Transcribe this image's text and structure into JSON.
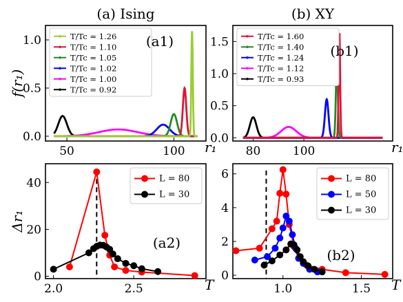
{
  "figure": {
    "panels": [
      {
        "id": "a1",
        "title": "(a) Ising",
        "ylabel": "f(r₁)",
        "xlabel": "r₁",
        "annotation": "(a1)",
        "legend_items": [
          {
            "label": "T/Tₑ = 1.26",
            "tc_label": "T/Tc = 1.26",
            "color": "#9acd32"
          },
          {
            "label": "T/Tc = 1.10",
            "tc_label": "T/Tc = 1.10",
            "color": "#dc143c"
          },
          {
            "label": "T/Tc = 1.05",
            "tc_label": "T/Tc = 1.05",
            "color": "#228b22"
          },
          {
            "label": "T/Tc = 1.02",
            "tc_label": "T/Tc = 1.02",
            "color": "#0000ff"
          },
          {
            "label": "T/Tc = 1.00",
            "tc_label": "T/Tc = 1.00",
            "color": "#ff00ff"
          },
          {
            "label": "T/Tc = 0.92",
            "tc_label": "T/Tc = 0.92",
            "color": "#000000"
          }
        ]
      },
      {
        "id": "b1",
        "title": "(b) XY",
        "xlabel": "r₁",
        "annotation": "(b1)",
        "legend_items": [
          {
            "label": "T/Tc = 1.60",
            "color": "#dc143c"
          },
          {
            "label": "T/Tc = 1.40",
            "color": "#228b22"
          },
          {
            "label": "T/Tc = 1.24",
            "color": "#0000ff"
          },
          {
            "label": "T/Tc = 1.12",
            "color": "#ff00ff"
          },
          {
            "label": "T/Tc = 0.93",
            "color": "#000000"
          }
        ]
      },
      {
        "id": "a2",
        "ylabel": "Δr₁",
        "xlabel": "T",
        "annotation": "(a2)",
        "legend_items": [
          {
            "label": "L = 80",
            "color": "#ff0000"
          },
          {
            "label": "L = 30",
            "color": "#000000"
          }
        ]
      },
      {
        "id": "b2",
        "xlabel": "T",
        "annotation": "(b2)",
        "legend_items": [
          {
            "label": "L = 80",
            "color": "#ff0000"
          },
          {
            "label": "L = 50",
            "color": "#0000ff"
          },
          {
            "label": "L = 30",
            "color": "#000000"
          }
        ]
      }
    ]
  },
  "chart_data": [
    {
      "type": "line",
      "panel": "a1",
      "title": "(a) Ising",
      "xlabel": "r₁",
      "ylabel": "f(r₁)",
      "xlim": [
        40,
        115
      ],
      "ylim": [
        -0.05,
        1.15
      ],
      "xticks": [
        50,
        100
      ],
      "yticks": [
        0.0,
        0.5,
        1.0
      ],
      "ytick_labels": [
        "0.0",
        "0.5",
        "1.0"
      ],
      "legend": "top-left",
      "series": [
        {
          "name": "T/Tc = 1.26",
          "color": "#9acd32",
          "peak": {
            "mu": 108.5,
            "sigma": 0.35,
            "amp": 1.1
          }
        },
        {
          "name": "T/Tc = 1.10",
          "color": "#dc143c",
          "peak": {
            "mu": 105,
            "sigma": 0.8,
            "amp": 0.5
          }
        },
        {
          "name": "T/Tc = 1.05",
          "color": "#228b22",
          "peak": {
            "mu": 100,
            "sigma": 1.5,
            "amp": 0.23
          }
        },
        {
          "name": "T/Tc = 1.02",
          "color": "#0000ff",
          "peak": {
            "mu": 95,
            "sigma": 3.0,
            "amp": 0.12
          }
        },
        {
          "name": "T/Tc = 1.00",
          "color": "#ff00ff",
          "peak": {
            "mu": 74,
            "sigma": 9.0,
            "amp": 0.07
          }
        },
        {
          "name": "T/Tc = 0.92",
          "color": "#000000",
          "peak": {
            "mu": 48,
            "sigma": 2.0,
            "amp": 0.21
          }
        }
      ]
    },
    {
      "type": "line",
      "panel": "b1",
      "title": "(b) XY",
      "xlabel": "r₁",
      "xlim": [
        72,
        135
      ],
      "ylim": [
        -0.05,
        1.75
      ],
      "xticks": [
        80,
        100
      ],
      "yticks": [
        0.0,
        0.5,
        1.0,
        1.5
      ],
      "ytick_labels": [
        "0.0",
        "0.5",
        "1.0",
        "1.5"
      ],
      "legend": "top-left",
      "series": [
        {
          "name": "T/Tc = 1.60",
          "color": "#dc143c",
          "peak": {
            "mu": 114,
            "sigma": 0.3,
            "amp": 1.65
          }
        },
        {
          "name": "T/Tc = 1.40",
          "color": "#228b22",
          "peak": {
            "mu": 113,
            "sigma": 0.4,
            "amp": 1.15
          }
        },
        {
          "name": "T/Tc = 1.24",
          "color": "#0000ff",
          "peak": {
            "mu": 109,
            "sigma": 0.7,
            "amp": 0.6
          }
        },
        {
          "name": "T/Tc = 1.12",
          "color": "#ff00ff",
          "peak": {
            "mu": 94,
            "sigma": 3.0,
            "amp": 0.17
          }
        },
        {
          "name": "T/Tc = 0.93",
          "color": "#000000",
          "peak": {
            "mu": 80,
            "sigma": 1.3,
            "amp": 0.32
          }
        }
      ]
    },
    {
      "type": "line",
      "panel": "a2",
      "xlabel": "T",
      "ylabel": "Δr₁",
      "xlim": [
        1.95,
        2.95
      ],
      "ylim": [
        -1,
        48
      ],
      "xticks": [
        2.0,
        2.5
      ],
      "xtick_labels": [
        "2.0",
        "2.5"
      ],
      "yticks": [
        0,
        20,
        40
      ],
      "ytick_labels": [
        "0",
        "20",
        "40"
      ],
      "legend": "top-right",
      "vline": 2.269,
      "series": [
        {
          "name": "L = 80",
          "color": "#ff0000",
          "x": [
            2.1,
            2.269,
            2.32,
            2.35,
            2.38,
            2.45,
            2.55,
            2.88
          ],
          "y": [
            4.0,
            44.5,
            17.5,
            9.0,
            4.0,
            2.5,
            1.8,
            0.3
          ]
        },
        {
          "name": "L = 30",
          "color": "#000000",
          "x": [
            2.0,
            2.22,
            2.25,
            2.27,
            2.29,
            2.31,
            2.33,
            2.35,
            2.37,
            2.4,
            2.45,
            2.5,
            2.55,
            2.65
          ],
          "y": [
            3.0,
            10.0,
            11.8,
            12.8,
            13.3,
            13.2,
            12.5,
            11.5,
            9.5,
            7.5,
            5.5,
            4.5,
            3.2,
            2.0
          ]
        }
      ]
    },
    {
      "type": "line",
      "panel": "b2",
      "xlabel": "T",
      "xlim": [
        0.68,
        1.7
      ],
      "ylim": [
        -0.2,
        6.6
      ],
      "xticks": [
        1.0,
        1.5
      ],
      "xtick_labels": [
        "1.0",
        "1.5"
      ],
      "yticks": [
        0,
        2,
        4,
        6
      ],
      "ytick_labels": [
        "0",
        "2",
        "4",
        "6"
      ],
      "legend": "top-right",
      "vline": 0.893,
      "series": [
        {
          "name": "L = 80",
          "color": "#ff0000",
          "x": [
            0.7,
            0.85,
            0.93,
            0.96,
            0.98,
            1.0,
            1.02,
            1.04,
            1.07,
            1.1,
            1.15,
            1.25,
            1.4,
            1.65
          ],
          "y": [
            1.45,
            1.6,
            2.75,
            3.2,
            4.85,
            6.25,
            4.8,
            3.0,
            1.7,
            1.0,
            0.6,
            0.35,
            0.15,
            0.05
          ]
        },
        {
          "name": "L = 50",
          "color": "#0000ff",
          "x": [
            0.82,
            0.9,
            0.95,
            0.98,
            1.0,
            1.02,
            1.04,
            1.06,
            1.08,
            1.1,
            1.13,
            1.17,
            1.22
          ],
          "y": [
            0.9,
            1.1,
            1.6,
            2.2,
            2.8,
            3.5,
            3.2,
            2.4,
            1.6,
            1.0,
            0.7,
            0.35,
            0.2
          ]
        },
        {
          "name": "L = 30",
          "color": "#000000",
          "x": [
            0.88,
            0.93,
            0.98,
            1.02,
            1.05,
            1.07,
            1.09,
            1.11,
            1.13,
            1.16,
            1.2,
            1.25
          ],
          "y": [
            0.6,
            0.85,
            1.2,
            1.5,
            1.85,
            1.8,
            1.5,
            1.1,
            0.8,
            0.55,
            0.35,
            0.2
          ]
        }
      ]
    }
  ]
}
